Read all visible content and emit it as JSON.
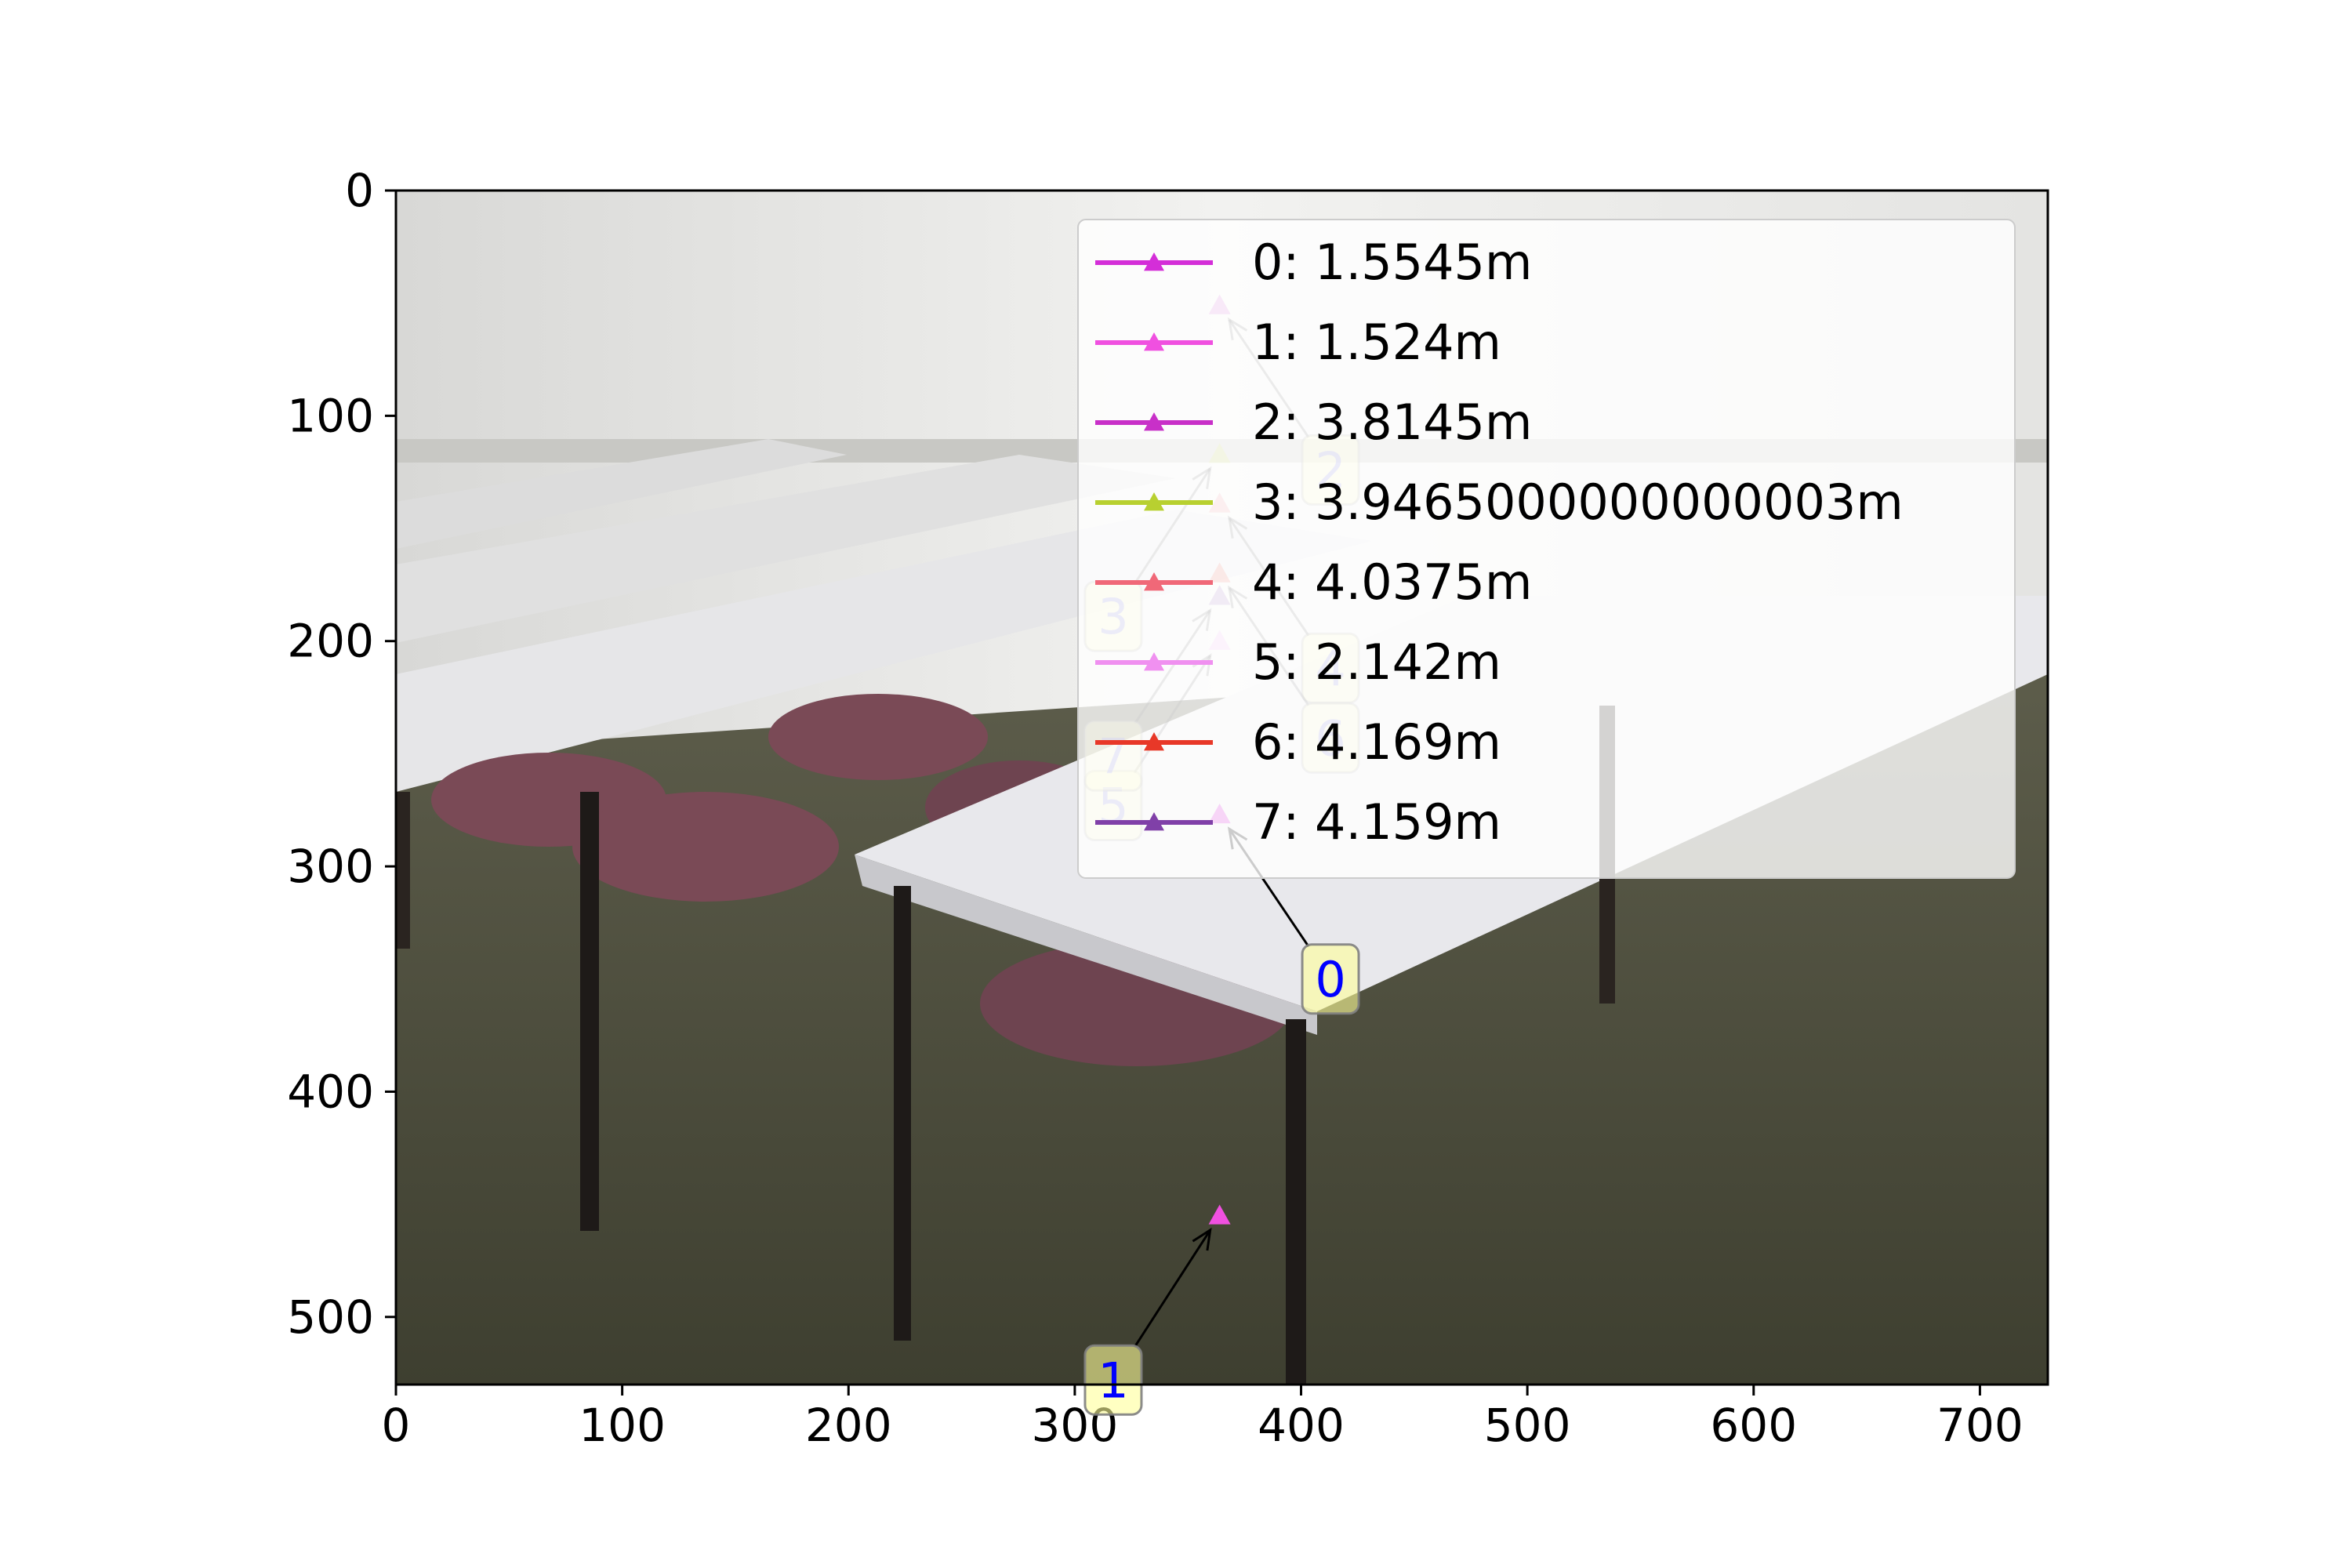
{
  "chart_data": {
    "type": "scatter",
    "background": "photo of a classroom with white tables and mauve chairs on a dark green carpet",
    "xlim": [
      0,
      730
    ],
    "ylim": [
      530,
      0
    ],
    "x_ticks": [
      0,
      100,
      200,
      300,
      400,
      500,
      600,
      700
    ],
    "y_ticks": [
      0,
      100,
      200,
      300,
      400,
      500
    ],
    "x_tick_labels": [
      "0",
      "100",
      "200",
      "300",
      "400",
      "500",
      "600",
      "700"
    ],
    "y_tick_labels": [
      "0",
      "100",
      "200",
      "300",
      "400",
      "500"
    ],
    "marker": "triangle",
    "legend_position": "top-right",
    "series": [
      {
        "id": "0",
        "name": "0: 1.5545m",
        "color": "#d42ed8",
        "x": 364,
        "y": 277,
        "label_x": 413,
        "label_y": 350
      },
      {
        "id": "1",
        "name": "1: 1.524m",
        "color": "#f050e0",
        "x": 364,
        "y": 455,
        "label_x": 317,
        "label_y": 528
      },
      {
        "id": "2",
        "name": "2: 3.8145m",
        "color": "#c830c8",
        "x": 364,
        "y": 51,
        "label_x": 413,
        "label_y": 124
      },
      {
        "id": "3",
        "name": "3: 3.9465000000000003m",
        "color": "#b8d030",
        "x": 364,
        "y": 117,
        "label_x": 317,
        "label_y": 189
      },
      {
        "id": "4",
        "name": "4: 4.0375m",
        "color": "#f06878",
        "x": 364,
        "y": 139,
        "label_x": 413,
        "label_y": 212
      },
      {
        "id": "5",
        "name": "5: 2.142m",
        "color": "#f090f0",
        "x": 364,
        "y": 200,
        "label_x": 317,
        "label_y": 273
      },
      {
        "id": "6",
        "name": "6: 4.169m",
        "color": "#e83828",
        "x": 364,
        "y": 170,
        "label_x": 413,
        "label_y": 243
      },
      {
        "id": "7",
        "name": "7: 4.159m",
        "color": "#8040a8",
        "x": 364,
        "y": 180,
        "label_x": 317,
        "label_y": 251
      }
    ]
  }
}
